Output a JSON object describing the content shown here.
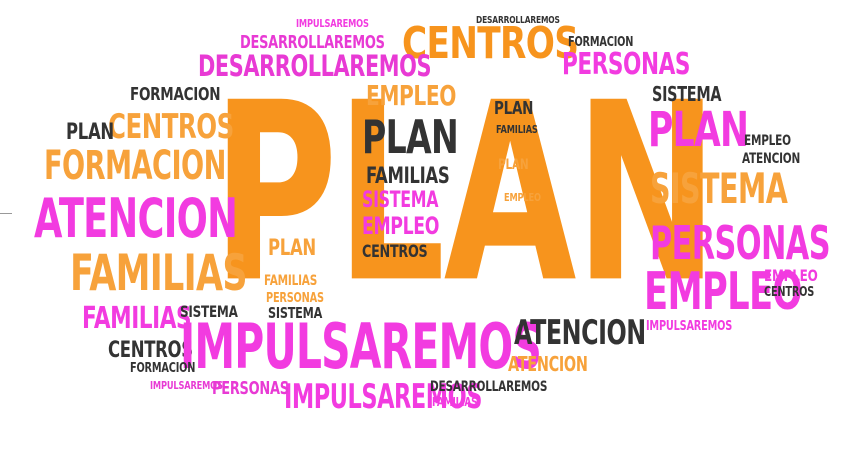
{
  "wordcloud": {
    "plan_main": "PLAN",
    "w_impulsaremos_big": "IMPULSAREMOS",
    "w_atencion_left": "ATENCION",
    "w_familias_left": "FAMILIAS",
    "w_formacion_left": "FORMACION",
    "w_centros_left": "CENTROS",
    "w_centros_top": "CENTROS",
    "w_personas_top": "PERSONAS",
    "w_desarrollaremos_top": "DESARROLLAREMOS",
    "w_desarrollaremos_top2": "DESARROLLAREMOS",
    "w_plan_right": "PLAN",
    "w_sistema_right": "SISTEMA",
    "w_personas_right": "PERSONAS",
    "w_empleo_right": "EMPLEO",
    "w_atencion_bottom": "ATENCION",
    "w_impulsaremos_bottom": "IMPULSAREMOS",
    "w_personas_bottom": "PERSONAS",
    "w_familias_bottom": "FAMILIAS",
    "w_centros_bottom": "CENTROS",
    "w_plan_center": "PLAN",
    "w_empleo_center": "EMPLEO",
    "w_familias_center": "FAMILIAS",
    "w_sistema_center": "SISTEMA",
    "w_centros_center": "CENTROS",
    "w_sistema_small": "SISTEMA",
    "w_formacion_small": "FORMACION",
    "w_impulsaremos_small": "IMPULSAREMOS",
    "w_desarrollaremos_small": "DESARROLLAREMOS",
    "w_atencion_small": "ATENCION",
    "w_empleo_small": "EMPLEO",
    "w_plan_small": "PLAN",
    "w_familias_small": "FAMILIAS",
    "w_personas_small": "PERSONAS",
    "w_sistema_left_small": "SISTEMA",
    "w_formacion_top_small": "FORMACION",
    "w_formacion_mid": "FORMACION",
    "w_plan_left_small": "PLAN",
    "w_impulsaremos_top_small": "IMPULSAREMOS",
    "w_desarrollaremos_tiny": "DESARROLLAREMOS",
    "w_centros_tiny": "CENTROS",
    "w_personas_tiny": "PERSONAS",
    "w_atencion_tiny": "ATENCION",
    "w_empleo_tiny": "EMPLEO",
    "w_sistema_tiny": "SISTEMA"
  },
  "colors": {
    "orange": "#f7941d",
    "light_orange": "#f7a23b",
    "magenta": "#f23be0",
    "dark_gray": "#333333"
  }
}
